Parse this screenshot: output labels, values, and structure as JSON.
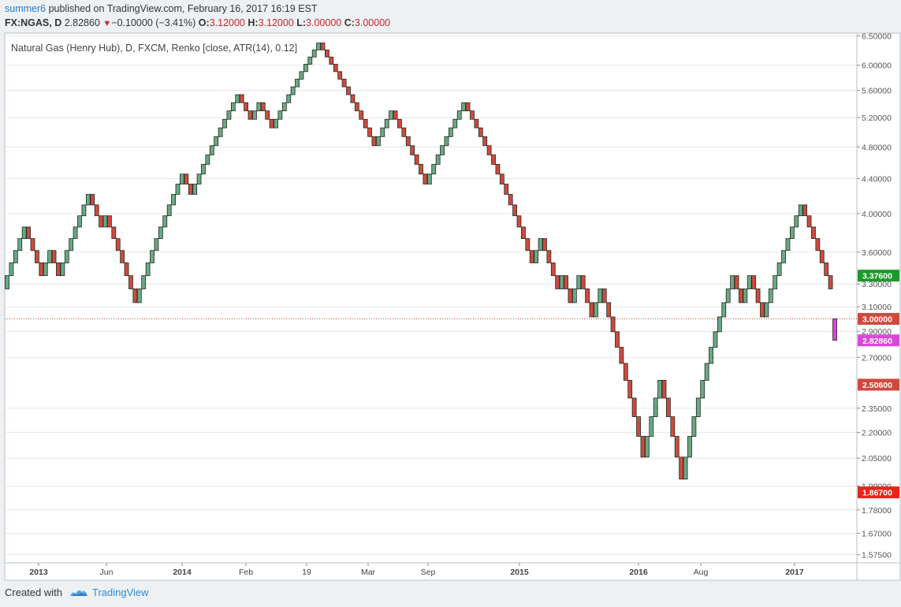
{
  "header": {
    "author": "summer6",
    "published": " published on TradingView.com, February 16, 2017 16:19 EST",
    "symbol": "FX:NGAS, D",
    "last": "2.82860",
    "change": "−0.10000 (−3.41%)",
    "o_label": "O:",
    "o_value": "3.12000",
    "h_label": "H:",
    "h_value": "3.12000",
    "l_label": "L:",
    "l_value": "3.00000",
    "c_label": "C:",
    "c_value": "3.00000"
  },
  "footer": {
    "created_with": "Created with",
    "brand": "TradingView"
  },
  "colors": {
    "up": "#6aa886",
    "down": "#cf4a3d",
    "last_brick": "#e040e0",
    "grid": "#e6e6e6"
  },
  "chart_data": {
    "type": "renko",
    "title": "Natural Gas (Henry Hub), D, FXCM, Renko [close, ATR(14), 0.12]",
    "y_scale": "log",
    "ylim": [
      1.54,
      6.55
    ],
    "y_ticks": [
      "6.50000",
      "6.00000",
      "5.60000",
      "5.20000",
      "4.80000",
      "4.40000",
      "4.00000",
      "3.60000",
      "3.30000",
      "3.10000",
      "2.90000",
      "2.70000",
      "2.35000",
      "2.20000",
      "2.05000",
      "1.90000",
      "1.78000",
      "1.67000",
      "1.57500"
    ],
    "x_labels": [
      "2013",
      "Jun",
      "2014",
      "Feb",
      "19",
      "Mar",
      "Sep",
      "2015",
      "2016",
      "Aug",
      "2017"
    ],
    "bold_x_labels": [
      "2013",
      "2014",
      "2015",
      "2016",
      "2017"
    ],
    "price_labels": [
      {
        "value": "3.37600",
        "price": 3.376,
        "color": "#1e9a2a"
      },
      {
        "value": "3.00000",
        "price": 3.0,
        "color": "#cf4a3d"
      },
      {
        "value": "2.82860",
        "price": 2.8286,
        "color": "#d84ad6"
      },
      {
        "value": "2.50600",
        "price": 2.506,
        "color": "#cf4a3d"
      },
      {
        "value": "1.86700",
        "price": 1.867,
        "color": "#e8241a"
      }
    ],
    "dotted_line_price": 3.0,
    "brick_size": 0.12,
    "start_price": 3.256,
    "moves": [
      1,
      1,
      1,
      1,
      1,
      -1,
      -1,
      -1,
      -1,
      1,
      1,
      -1,
      -1,
      1,
      1,
      1,
      1,
      1,
      1,
      1,
      -1,
      -1,
      -1,
      1,
      -1,
      -1,
      -1,
      -1,
      -1,
      -1,
      -1,
      1,
      1,
      1,
      1,
      1,
      1,
      1,
      1,
      1,
      1,
      1,
      -1,
      -1,
      1,
      1,
      1,
      1,
      1,
      1,
      1,
      1,
      1,
      1,
      1,
      -1,
      -1,
      -1,
      1,
      1,
      -1,
      -1,
      -1,
      1,
      1,
      1,
      1,
      1,
      1,
      1,
      1,
      1,
      1,
      1,
      -1,
      -1,
      -1,
      -1,
      -1,
      -1,
      -1,
      -1,
      -1,
      -1,
      -1,
      -1,
      -1,
      1,
      1,
      1,
      1,
      -1,
      -1,
      -1,
      -1,
      -1,
      -1,
      -1,
      -1,
      1,
      1,
      1,
      1,
      1,
      1,
      1,
      1,
      1,
      -1,
      -1,
      -1,
      -1,
      -1,
      -1,
      -1,
      -1,
      -1,
      -1,
      -1,
      -1,
      -1,
      -1,
      -1,
      -1,
      1,
      1,
      -1,
      -1,
      -1,
      -1,
      1,
      -1,
      -1,
      1,
      1,
      -1,
      -1,
      -1,
      1,
      1,
      -1,
      -1,
      -1,
      -1,
      -1,
      -1,
      -1,
      -1,
      -1,
      -1,
      1,
      1,
      1,
      1,
      -1,
      -1,
      -1,
      -1,
      -1,
      1,
      1,
      1,
      1,
      1,
      1,
      1,
      1,
      1,
      1,
      1,
      1,
      -1,
      -1,
      1,
      1,
      -1,
      -1,
      -1,
      1,
      1,
      1,
      1,
      1,
      1,
      1,
      1,
      1,
      -1,
      -1,
      -1,
      -1,
      -1,
      -1,
      -1
    ],
    "last_brick": {
      "open": 3.0,
      "close": 2.8286
    }
  }
}
